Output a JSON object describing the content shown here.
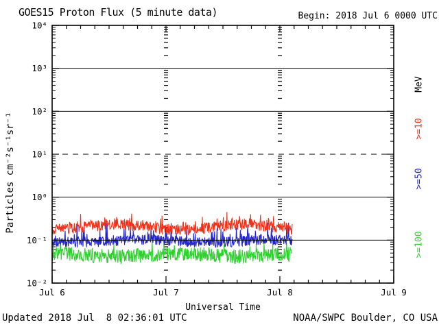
{
  "header": {
    "title": "GOES15 Proton Flux (5 minute data)",
    "begin": "Begin: 2018 Jul 6 0000 UTC"
  },
  "footer": {
    "updated": "Updated 2018 Jul  8 02:36:01 UTC",
    "credit": "NOAA/SWPC Boulder, CO USA"
  },
  "axes": {
    "ylabel": "Particles cm⁻²s⁻¹sr⁻¹",
    "xlabel": "Universal Time",
    "x_tick_labels": [
      "Jul 6",
      "Jul 7",
      "Jul 8",
      "Jul 9"
    ],
    "y_tick_labels": [
      "10⁴",
      "10³",
      "10²",
      "10¹",
      "10⁰",
      "10⁻¹",
      "10⁻²"
    ]
  },
  "legend": {
    "unit": "MeV",
    "unit_color": "#000000",
    "entries": [
      {
        "label": ">=10",
        "color": "#ee3118"
      },
      {
        "label": ">=50",
        "color": "#2424cc"
      },
      {
        "label": ">=100",
        "color": "#2ed12e"
      }
    ]
  },
  "chart_data": {
    "type": "line",
    "title": "GOES15 Proton Flux (5 minute data)",
    "xlabel": "Universal Time",
    "ylabel": "Particles cm-2 s-1 sr-1",
    "y_scale": "log10",
    "ylim": [
      0.01,
      10000
    ],
    "x_range_days": 3,
    "x_begin": "2018 Jul 6 0000 UTC",
    "x_tick_labels": [
      "Jul 6",
      "Jul 7",
      "Jul 8",
      "Jul 9"
    ],
    "x_minor_tick_hours": 3,
    "y_major_exponents": [
      4,
      3,
      2,
      1,
      0,
      -1,
      -2
    ],
    "h_gridlines_solid": [
      1000,
      100,
      1,
      0.1
    ],
    "h_gridlines_dashed": [
      10
    ],
    "v_dotted_gridline_days": [
      1,
      2
    ],
    "sample_interval_minutes": 5,
    "series": [
      {
        "name": ">=10 MeV",
        "color": "#ee3118",
        "start_day": 0,
        "end_day": 2.11,
        "level_median": 0.2,
        "level_min": 0.11,
        "level_max": 0.45,
        "noise": {
          "jitter_log": 0.13,
          "spike_prob": 0.15,
          "spike_log": 0.22,
          "drift_log": 0.06
        },
        "seed": 11
      },
      {
        "name": ">=50 MeV",
        "color": "#2424cc",
        "start_day": 0,
        "end_day": 2.11,
        "level_median": 0.095,
        "level_min": 0.05,
        "level_max": 0.28,
        "noise": {
          "jitter_log": 0.12,
          "spike_prob": 0.09,
          "spike_log": 0.4,
          "drift_log": 0.03
        },
        "seed": 22
      },
      {
        "name": ">=100 MeV",
        "color": "#2ed12e",
        "start_day": 0,
        "end_day": 2.11,
        "level_median": 0.045,
        "level_min": 0.021,
        "level_max": 0.11,
        "noise": {
          "jitter_log": 0.17,
          "spike_prob": 0.08,
          "spike_log": 0.2,
          "drift_log": 0.03
        },
        "seed": 33
      }
    ]
  }
}
